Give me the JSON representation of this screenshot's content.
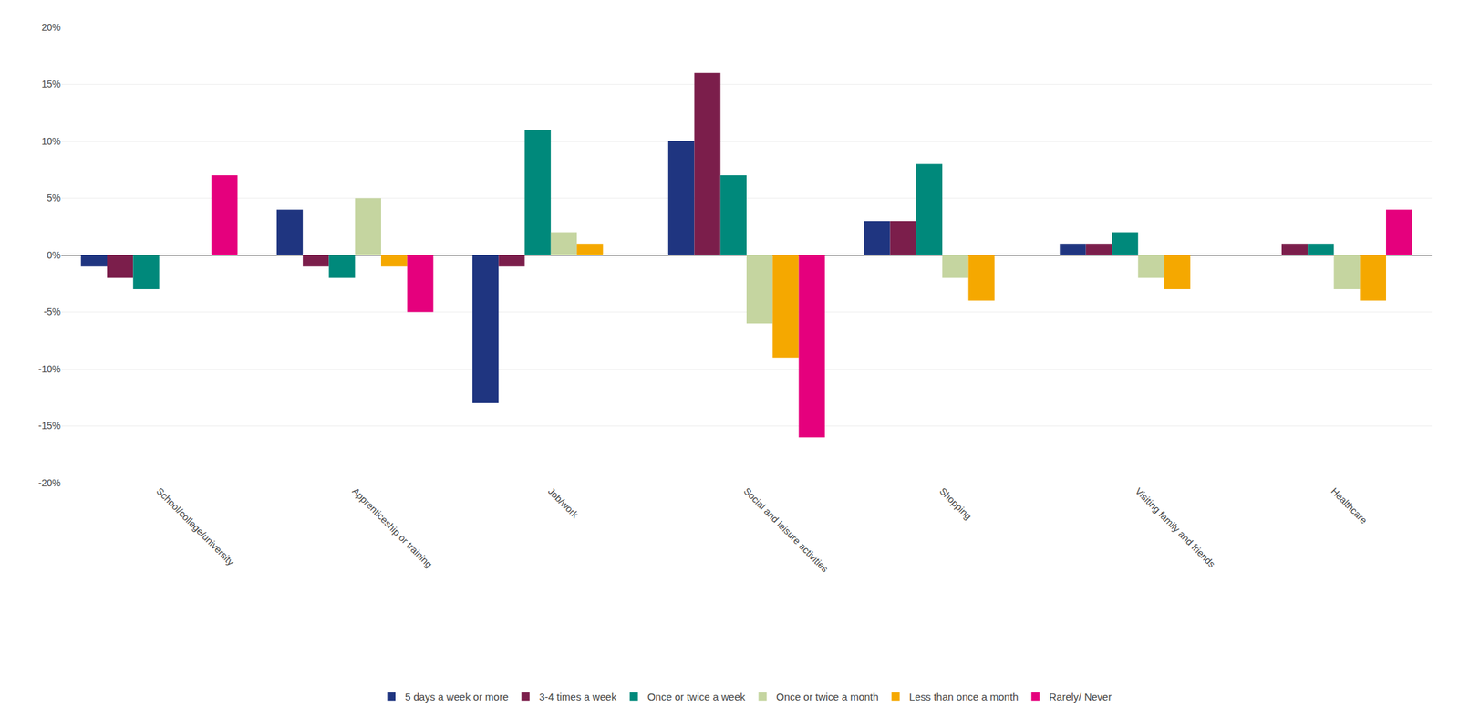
{
  "chart_data": {
    "type": "bar",
    "categories": [
      "School/college/university",
      "Apprenticeship or training",
      "Job/work",
      "Social and leisure activities",
      "Shopping",
      "Visiting family and friends",
      "Healthcare"
    ],
    "series": [
      {
        "name": "5 days a week or more",
        "color": "#1f3580",
        "values": [
          -1,
          4,
          -13,
          10,
          3,
          1,
          0
        ]
      },
      {
        "name": "3-4 times a week",
        "color": "#7b1e4b",
        "values": [
          -2,
          -1,
          -1,
          16,
          3,
          1,
          1
        ]
      },
      {
        "name": "Once or twice a week",
        "color": "#00897b",
        "values": [
          -3,
          -2,
          11,
          7,
          8,
          2,
          1
        ]
      },
      {
        "name": "Once or twice a month",
        "color": "#c5d5a0",
        "values": [
          0,
          5,
          2,
          -6,
          -2,
          -2,
          -3
        ]
      },
      {
        "name": "Less than once a month",
        "color": "#f5a800",
        "values": [
          0,
          -1,
          1,
          -9,
          -4,
          -3,
          -4
        ]
      },
      {
        "name": "Rarely/ Never",
        "color": "#e5007d",
        "values": [
          7,
          -5,
          0,
          -16,
          0,
          0,
          4
        ]
      }
    ],
    "ylim": [
      -20,
      20
    ],
    "yticks": [
      {
        "value": -20,
        "label": "-20%"
      },
      {
        "value": -15,
        "label": "-15%"
      },
      {
        "value": -10,
        "label": "-10%"
      },
      {
        "value": -5,
        "label": "-5%"
      },
      {
        "value": 0,
        "label": "0%"
      },
      {
        "value": 5,
        "label": "5%"
      },
      {
        "value": 10,
        "label": "10%"
      },
      {
        "value": 15,
        "label": "15%"
      },
      {
        "value": 20,
        "label": "20%"
      }
    ],
    "grid": true,
    "legend": "bottom"
  }
}
